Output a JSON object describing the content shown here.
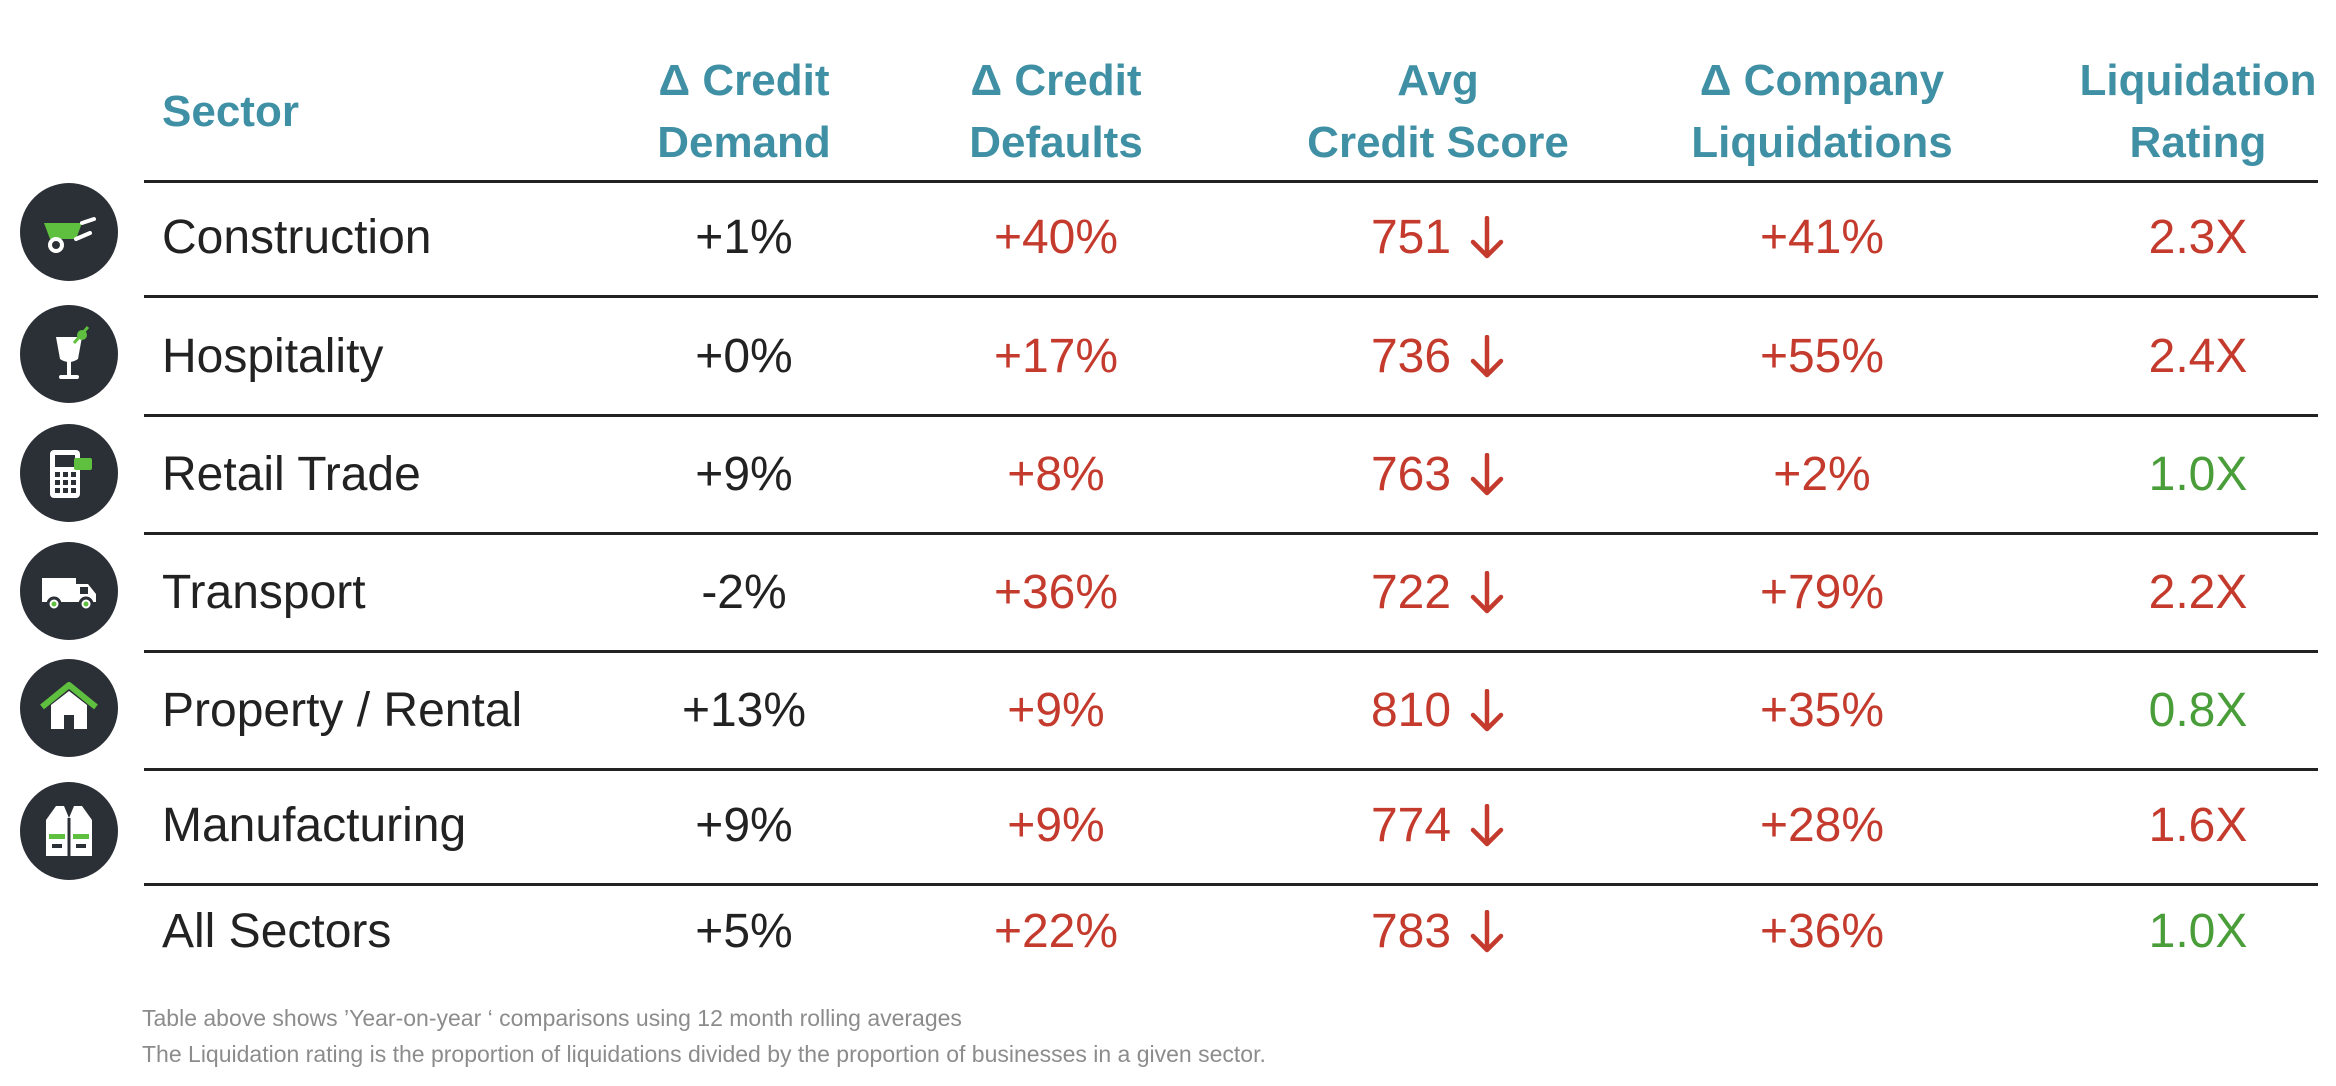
{
  "headers": [
    "Sector",
    "Δ Credit\nDemand",
    "Δ Credit\nDefaults",
    "Avg\nCredit Score",
    "Δ Company\nLiquidations",
    "Liquidation\nRating"
  ],
  "rows": [
    {
      "sector": "Construction",
      "demand": "+1%",
      "defaults": "+40%",
      "score": "751",
      "liquidations": "+41%",
      "rating": "2.3X",
      "rating_status": "red",
      "icon": "wheelbarrow-icon"
    },
    {
      "sector": "Hospitality",
      "demand": "+0%",
      "defaults": "+17%",
      "score": "736",
      "liquidations": "+55%",
      "rating": "2.4X",
      "rating_status": "red",
      "icon": "cocktail-icon"
    },
    {
      "sector": "Retail Trade",
      "demand": "+9%",
      "defaults": "+8%",
      "score": "763",
      "liquidations": "+2%",
      "rating": "1.0X",
      "rating_status": "green",
      "icon": "card-terminal-icon"
    },
    {
      "sector": "Transport",
      "demand": "-2%",
      "defaults": "+36%",
      "score": "722",
      "liquidations": "+79%",
      "rating": "2.2X",
      "rating_status": "red",
      "icon": "truck-icon"
    },
    {
      "sector": "Property / Rental",
      "demand": "+13%",
      "defaults": "+9%",
      "score": "810",
      "liquidations": "+35%",
      "rating": "0.8X",
      "rating_status": "green",
      "icon": "house-icon"
    },
    {
      "sector": "Manufacturing",
      "demand": "+9%",
      "defaults": "+9%",
      "score": "774",
      "liquidations": "+28%",
      "rating": "1.6X",
      "rating_status": "red",
      "icon": "safety-vest-icon"
    },
    {
      "sector": "All Sectors",
      "demand": "+5%",
      "defaults": "+22%",
      "score": "783",
      "liquidations": "+36%",
      "rating": "1.0X",
      "rating_status": "green",
      "icon": ""
    }
  ],
  "score_trend_icon": "arrow-down-icon",
  "footnotes": [
    "Table above shows ’Year-on-year ‘ comparisons using 12 month rolling averages",
    "The Liquidation rating is the proportion of liquidations divided by the proportion of businesses in a given sector."
  ],
  "colors": {
    "header": "#3f90a4",
    "bad": "#c43a2d",
    "good": "#4a9e3a",
    "icon_bg": "#2b2f36",
    "icon_accent": "#5fbf3f"
  }
}
